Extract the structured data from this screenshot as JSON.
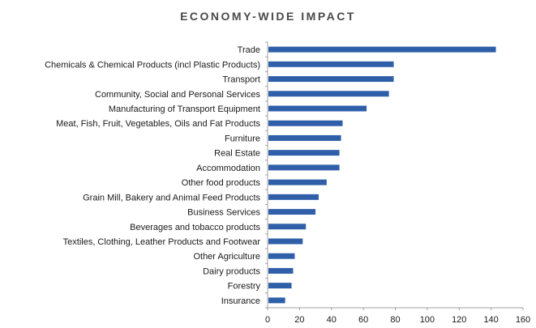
{
  "chart_data": {
    "type": "bar",
    "orientation": "horizontal",
    "title": "ECONOMY-WIDE IMPACT",
    "categories": [
      "Trade",
      "Chemicals & Chemical Products (incl Plastic Products)",
      "Transport",
      "Community, Social and Personal Services",
      "Manufacturing of Transport Equipment",
      "Meat, Fish, Fruit, Vegetables, Oils and Fat Products",
      "Furniture",
      "Real Estate",
      "Accommodation",
      "Other food products",
      "Grain Mill, Bakery and Animal Feed Products",
      "Business Services",
      "Beverages and tobacco products",
      "Textiles, Clothing, Leather Products and Footwear",
      "Other Agriculture",
      "Dairy products",
      "Forestry",
      "Insurance"
    ],
    "values": [
      143,
      79,
      79,
      76,
      62,
      47,
      46,
      45,
      45,
      37,
      32,
      30,
      24,
      22,
      17,
      16,
      15,
      11
    ],
    "xlim": [
      0,
      160
    ],
    "xticks": [
      0,
      20,
      40,
      60,
      80,
      100,
      120,
      140,
      160
    ],
    "grid": false,
    "colors": {
      "bar": "#2f5fa8",
      "axis": "#a0a0a0",
      "text": "#1a1a1a",
      "title": "#4a4a4a"
    }
  }
}
